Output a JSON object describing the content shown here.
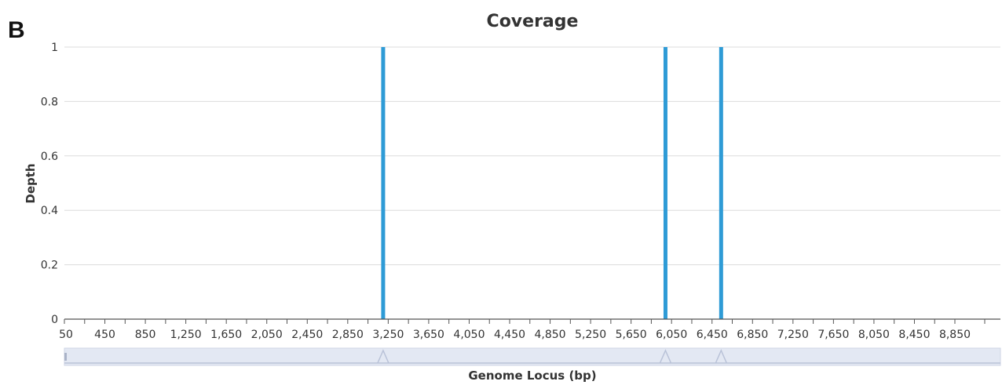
{
  "panel_label": "B",
  "chart_data": {
    "type": "bar",
    "title": "Coverage",
    "xlabel": "Genome Locus (bp)",
    "ylabel": "Depth",
    "ylim": [
      0,
      1
    ],
    "xlim": [
      50,
      9300
    ],
    "y_ticks": [
      "0",
      "0.2",
      "0.4",
      "0.6",
      "0.8",
      "1"
    ],
    "x_ticks": [
      "50",
      "450",
      "850",
      "1,250",
      "1,650",
      "2,050",
      "2,450",
      "2,850",
      "3,250",
      "3,650",
      "4,050",
      "4,450",
      "4,850",
      "5,250",
      "5,650",
      "6,050",
      "6,450",
      "6,850",
      "7,250",
      "7,650",
      "8,050",
      "8,450",
      "8,850"
    ],
    "bars": [
      {
        "x": 3200,
        "depth": 1
      },
      {
        "x": 5990,
        "depth": 1
      },
      {
        "x": 6540,
        "depth": 1
      }
    ],
    "bar_color": "#2e9bd6",
    "grid": true,
    "has_range_slider": true
  }
}
